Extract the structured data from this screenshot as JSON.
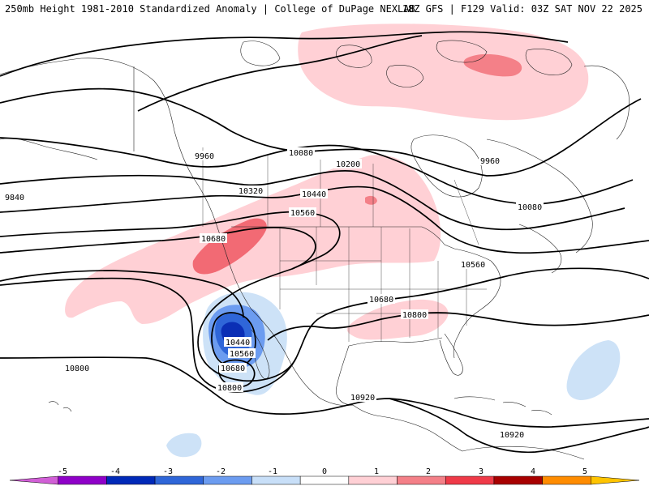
{
  "header": {
    "title": "250mb Height 1981-2010 Standardized Anomaly | College of DuPage NEXLAB",
    "run_info": "18Z GFS | F129 Valid: 03Z SAT NOV 22 2025"
  },
  "contour_labels": [
    "9960",
    "10080",
    "9960",
    "9840",
    "10200",
    "10320",
    "10440",
    "10560",
    "10080",
    "10680",
    "10560",
    "10680",
    "10800",
    "10440",
    "10560",
    "10680",
    "10800",
    "10800",
    "10920",
    "10920"
  ],
  "colorbar": {
    "labels": [
      "-5",
      "-4",
      "-3",
      "-2",
      "-1",
      "0",
      "1",
      "2",
      "3",
      "4",
      "5"
    ],
    "colors": [
      "#d15fd6",
      "#8f00c8",
      "#0029b8",
      "#2f66d8",
      "#6c9cf0",
      "#c8dff8",
      "#ffffff",
      "#ffd0d5",
      "#f48088",
      "#ef3a48",
      "#a80000",
      "#ff8c00",
      "#ffc400"
    ]
  },
  "colors": {
    "positive_light": "#ffd0d5",
    "positive_mid": "#f6868e",
    "negative_light": "#cde2f7",
    "negative_mid": "#6c9cf0",
    "negative_strong": "#2f66d8",
    "negative_deep": "#0b2fb5"
  }
}
